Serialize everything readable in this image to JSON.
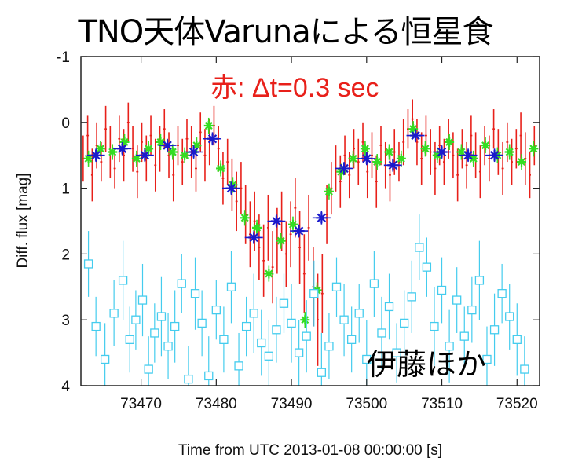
{
  "slide_title": "TNO天体Varunaによる恒星食",
  "chart_data": {
    "type": "scatter",
    "xlabel": "Time from UTC 2013-01-08 00:00:00 [s]",
    "ylabel": "Diff. flux [mag]",
    "xlim": [
      73462,
      73523
    ],
    "ylim": [
      -1,
      4
    ],
    "y_inverted": true,
    "xticks": [
      73470,
      73480,
      73490,
      73500,
      73510,
      73520
    ],
    "yticks": [
      -1,
      0,
      1,
      2,
      3,
      4
    ],
    "grid": false,
    "annotations": [
      "赤: Δt=0.3 sec",
      "伊藤ほか"
    ],
    "colors": {
      "red": "#e8201a",
      "green": "#33dd22",
      "blue": "#1a1acc",
      "cyan": "#44ccee"
    },
    "series": [
      {
        "marker": "plus",
        "color": "red",
        "x_err": 0.15,
        "x": [
          73462.3,
          73462.9,
          73463.5,
          73464.1,
          73464.7,
          73465.3,
          73465.9,
          73466.5,
          73467.1,
          73467.7,
          73468.3,
          73468.9,
          73469.5,
          73470.1,
          73470.7,
          73471.3,
          73471.9,
          73472.5,
          73473.1,
          73473.7,
          73474.3,
          73474.9,
          73475.5,
          73476.1,
          73476.7,
          73477.3,
          73477.9,
          73478.5,
          73479.1,
          73479.7,
          73480.3,
          73480.9,
          73481.5,
          73482.1,
          73482.7,
          73483.3,
          73483.9,
          73484.5,
          73485.1,
          73485.7,
          73486.3,
          73486.9,
          73487.5,
          73488.1,
          73488.7,
          73489.3,
          73489.9,
          73490.5,
          73491.1,
          73491.7,
          73492.3,
          73492.9,
          73493.5,
          73494.1,
          73494.7,
          73495.3,
          73495.9,
          73496.5,
          73497.1,
          73497.7,
          73498.3,
          73498.9,
          73499.5,
          73500.1,
          73500.7,
          73501.3,
          73501.9,
          73502.5,
          73503.1,
          73503.7,
          73504.3,
          73504.9,
          73505.5,
          73506.1,
          73506.7,
          73507.3,
          73507.9,
          73508.5,
          73509.1,
          73509.7,
          73510.3,
          73510.9,
          73511.5,
          73512.1,
          73512.7,
          73513.3,
          73513.9,
          73514.5,
          73515.1,
          73515.7,
          73516.3,
          73516.9,
          73517.5,
          73518.1,
          73518.7,
          73519.3,
          73519.9,
          73520.5,
          73521.1,
          73521.7,
          73522.3
        ],
        "y": [
          0.55,
          0.2,
          0.8,
          0.35,
          0.6,
          0.1,
          0.45,
          0.7,
          0.25,
          0.5,
          0.0,
          0.4,
          0.75,
          0.3,
          0.55,
          0.2,
          0.65,
          0.4,
          0.1,
          0.5,
          0.8,
          0.35,
          0.6,
          0.25,
          0.45,
          0.7,
          0.15,
          0.5,
          0.3,
          0.05,
          0.4,
          0.85,
          0.6,
          0.95,
          1.2,
          1.0,
          1.4,
          1.7,
          1.5,
          1.9,
          2.1,
          1.6,
          2.2,
          1.8,
          1.5,
          2.0,
          1.7,
          1.3,
          1.9,
          2.3,
          1.6,
          2.5,
          3.0,
          2.6,
          1.4,
          1.0,
          0.7,
          0.9,
          0.5,
          0.8,
          0.4,
          0.6,
          0.3,
          0.75,
          0.5,
          0.9,
          0.35,
          0.65,
          0.8,
          0.45,
          0.6,
          0.3,
          0.1,
          -0.05,
          0.3,
          0.55,
          0.2,
          0.45,
          0.7,
          0.35,
          0.6,
          0.25,
          0.5,
          0.8,
          0.4,
          0.65,
          0.2,
          0.5,
          0.75,
          0.35,
          0.55,
          0.1,
          0.45,
          0.7,
          0.3,
          0.6,
          0.4,
          0.2,
          0.55,
          0.8,
          0.35
        ],
        "y_err": [
          0.35,
          0.3,
          0.4,
          0.35,
          0.3,
          0.35,
          0.4,
          0.3,
          0.35,
          0.4,
          0.3,
          0.35,
          0.4,
          0.3,
          0.35,
          0.3,
          0.4,
          0.35,
          0.3,
          0.35,
          0.4,
          0.3,
          0.35,
          0.3,
          0.4,
          0.35,
          0.3,
          0.4,
          0.35,
          0.3,
          0.35,
          0.4,
          0.35,
          0.4,
          0.45,
          0.4,
          0.45,
          0.5,
          0.45,
          0.5,
          0.55,
          0.5,
          0.55,
          0.5,
          0.45,
          0.5,
          0.5,
          0.45,
          0.55,
          0.6,
          0.5,
          0.6,
          0.7,
          0.6,
          0.45,
          0.4,
          0.35,
          0.4,
          0.3,
          0.35,
          0.3,
          0.35,
          0.3,
          0.4,
          0.35,
          0.4,
          0.3,
          0.35,
          0.4,
          0.35,
          0.3,
          0.35,
          0.3,
          0.3,
          0.35,
          0.4,
          0.3,
          0.35,
          0.4,
          0.3,
          0.35,
          0.3,
          0.35,
          0.4,
          0.3,
          0.35,
          0.3,
          0.35,
          0.4,
          0.3,
          0.35,
          0.3,
          0.35,
          0.4,
          0.3,
          0.35,
          0.3,
          0.35,
          0.4,
          0.35,
          0.3
        ]
      },
      {
        "marker": "star",
        "color": "green",
        "x_err": 0.4,
        "y_err": 0.12,
        "x": [
          73463.0,
          73464.6,
          73466.2,
          73467.8,
          73469.4,
          73471.0,
          73472.6,
          73474.2,
          73475.8,
          73477.4,
          73479.0,
          73480.6,
          73482.2,
          73483.8,
          73485.4,
          73487.0,
          73488.6,
          73490.2,
          73491.8,
          73493.4,
          73495.0,
          73496.6,
          73498.2,
          73499.8,
          73501.4,
          73503.0,
          73504.6,
          73506.2,
          73507.8,
          73509.4,
          73511.0,
          73512.6,
          73514.2,
          73515.8,
          73517.4,
          73519.0,
          73520.6,
          73522.2
        ],
        "y": [
          0.55,
          0.4,
          0.45,
          0.3,
          0.55,
          0.4,
          0.3,
          0.45,
          0.5,
          0.35,
          0.05,
          0.7,
          0.95,
          1.45,
          1.6,
          2.3,
          1.8,
          1.55,
          3.0,
          2.55,
          1.05,
          0.75,
          0.55,
          0.4,
          0.6,
          0.45,
          0.55,
          0.1,
          0.4,
          0.5,
          0.3,
          0.45,
          0.55,
          0.35,
          0.5,
          0.45,
          0.6,
          0.4
        ]
      },
      {
        "marker": "star",
        "color": "blue",
        "x_err": 1.2,
        "y_err": 0.1,
        "x": [
          73464.0,
          73467.5,
          73470.5,
          73473.5,
          73477.0,
          73479.5,
          73482.0,
          73485.0,
          73488.0,
          73491.0,
          73494.0,
          73497.0,
          73500.0,
          73503.5,
          73506.5,
          73510.0,
          73513.5,
          73517.0
        ],
        "y": [
          0.5,
          0.4,
          0.5,
          0.35,
          0.45,
          0.25,
          1.0,
          1.75,
          1.5,
          1.65,
          1.45,
          0.7,
          0.55,
          0.65,
          0.2,
          0.45,
          0.5,
          0.5
        ]
      },
      {
        "marker": "square",
        "color": "cyan",
        "x_err": 0.25,
        "x": [
          73463.0,
          73464.0,
          73465.2,
          73466.4,
          73467.6,
          73468.5,
          73469.3,
          73470.2,
          73471.0,
          73471.8,
          73472.7,
          73473.6,
          73474.5,
          73475.4,
          73476.3,
          73477.2,
          73478.1,
          73479.0,
          73480.0,
          73481.0,
          73482.0,
          73483.0,
          73484.0,
          73485.0,
          73486.0,
          73487.0,
          73488.0,
          73489.0,
          73490.0,
          73491.0,
          73492.0,
          73493.0,
          73494.0,
          73495.0,
          73496.0,
          73497.0,
          73498.0,
          73499.0,
          73500.0,
          73501.0,
          73502.0,
          73503.0,
          73504.0,
          73505.0,
          73506.0,
          73507.0,
          73508.0,
          73509.0,
          73510.0,
          73511.0,
          73512.0,
          73513.0,
          73514.0,
          73515.0,
          73516.0,
          73517.0,
          73518.0,
          73519.0,
          73520.0,
          73521.0
        ],
        "y": [
          2.15,
          3.1,
          3.6,
          2.9,
          2.4,
          3.3,
          3.0,
          2.7,
          3.75,
          3.2,
          2.95,
          3.4,
          3.1,
          2.45,
          3.9,
          2.6,
          3.05,
          3.85,
          2.85,
          3.3,
          2.5,
          3.7,
          3.1,
          2.9,
          3.35,
          3.55,
          3.15,
          2.75,
          3.05,
          3.5,
          3.25,
          2.6,
          3.8,
          3.4,
          2.5,
          3.0,
          3.3,
          2.9,
          3.6,
          2.45,
          3.2,
          2.8,
          3.5,
          3.05,
          2.65,
          1.9,
          2.2,
          3.1,
          2.55,
          3.4,
          2.7,
          3.25,
          2.85,
          2.4,
          3.6,
          3.15,
          2.6,
          2.95,
          3.3,
          3.75
        ],
        "y_err": [
          0.5,
          0.45,
          0.55,
          0.5,
          0.6,
          0.5,
          0.45,
          0.55,
          0.5,
          0.45,
          0.6,
          0.5,
          0.55,
          0.45,
          0.5,
          0.55,
          0.5,
          0.6,
          0.45,
          0.5,
          0.55,
          0.5,
          0.45,
          0.6,
          0.5,
          0.55,
          0.5,
          0.45,
          0.6,
          0.5,
          0.55,
          0.5,
          0.6,
          0.5,
          0.45,
          0.55,
          0.5,
          0.45,
          0.6,
          0.5,
          0.55,
          0.5,
          0.45,
          0.5,
          0.55,
          0.5,
          0.45,
          0.6,
          0.5,
          0.55,
          0.5,
          0.45,
          0.5,
          0.6,
          0.5,
          0.55,
          0.45,
          0.5,
          0.55,
          0.5
        ]
      }
    ]
  }
}
